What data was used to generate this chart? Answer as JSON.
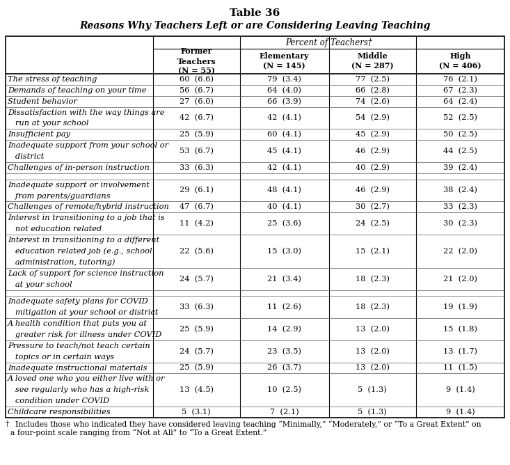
{
  "title_line1": "Table 36",
  "title_line2": "Reasons Why Teachers Left or are Considering Leaving Teaching",
  "col_header_main": "Percent of Teachers†",
  "col_headers": [
    "Former\nTeachers\n(N = 55)",
    "Elementary\n(N = 145)",
    "Middle\n(N = 287)",
    "High\n(N = 406)"
  ],
  "rows": [
    {
      "label": [
        "The stress of teaching"
      ],
      "values": [
        "60  (6.6)",
        "79  (3.4)",
        "77  (2.5)",
        "76  (2.1)"
      ]
    },
    {
      "label": [
        "Demands of teaching on your time"
      ],
      "values": [
        "56  (6.7)",
        "64  (4.0)",
        "66  (2.8)",
        "67  (2.3)"
      ]
    },
    {
      "label": [
        "Student behavior"
      ],
      "values": [
        "27  (6.0)",
        "66  (3.9)",
        "74  (2.6)",
        "64  (2.4)"
      ]
    },
    {
      "label": [
        "Dissatisfaction with the way things are",
        "   run at your school"
      ],
      "values": [
        "42  (6.7)",
        "42  (4.1)",
        "54  (2.9)",
        "52  (2.5)"
      ]
    },
    {
      "label": [
        "Insufficient pay"
      ],
      "values": [
        "25  (5.9)",
        "60  (4.1)",
        "45  (2.9)",
        "50  (2.5)"
      ]
    },
    {
      "label": [
        "Inadequate support from your school or",
        "   district"
      ],
      "values": [
        "53  (6.7)",
        "45  (4.1)",
        "46  (2.9)",
        "44  (2.5)"
      ]
    },
    {
      "label": [
        "Challenges of in-person instruction"
      ],
      "values": [
        "33  (6.3)",
        "42  (4.1)",
        "40  (2.9)",
        "39  (2.4)"
      ]
    },
    {
      "label": [
        ""
      ],
      "values": [
        "",
        "",
        "",
        ""
      ]
    },
    {
      "label": [
        "Inadequate support or involvement",
        "   from parents/guardians"
      ],
      "values": [
        "29  (6.1)",
        "48  (4.1)",
        "46  (2.9)",
        "38  (2.4)"
      ]
    },
    {
      "label": [
        "Challenges of remote/hybrid instruction"
      ],
      "values": [
        "47  (6.7)",
        "40  (4.1)",
        "30  (2.7)",
        "33  (2.3)"
      ]
    },
    {
      "label": [
        "Interest in transitioning to a job that is",
        "   not education related"
      ],
      "values": [
        "11  (4.2)",
        "25  (3.6)",
        "24  (2.5)",
        "30  (2.3)"
      ]
    },
    {
      "label": [
        "Interest in transitioning to a different",
        "   education related job (e.g., school",
        "   administration, tutoring)"
      ],
      "values": [
        "22  (5.6)",
        "15  (3.0)",
        "15  (2.1)",
        "22  (2.0)"
      ]
    },
    {
      "label": [
        "Lack of support for science instruction",
        "   at your school"
      ],
      "values": [
        "24  (5.7)",
        "21  (3.4)",
        "18  (2.3)",
        "21  (2.0)"
      ]
    },
    {
      "label": [
        ""
      ],
      "values": [
        "",
        "",
        "",
        ""
      ]
    },
    {
      "label": [
        "Inadequate safety plans for COVID",
        "   mitigation at your school or district"
      ],
      "values": [
        "33  (6.3)",
        "11  (2.6)",
        "18  (2.3)",
        "19  (1.9)"
      ]
    },
    {
      "label": [
        "A health condition that puts you at",
        "   greater risk for illness under COVID"
      ],
      "values": [
        "25  (5.9)",
        "14  (2.9)",
        "13  (2.0)",
        "15  (1.8)"
      ]
    },
    {
      "label": [
        "Pressure to teach/not teach certain",
        "   topics or in certain ways"
      ],
      "values": [
        "24  (5.7)",
        "23  (3.5)",
        "13  (2.0)",
        "13  (1.7)"
      ]
    },
    {
      "label": [
        "Inadequate instructional materials"
      ],
      "values": [
        "25  (5.9)",
        "26  (3.7)",
        "13  (2.0)",
        "11  (1.5)"
      ]
    },
    {
      "label": [
        "A loved one who you either live with or",
        "   see regularly who has a high-risk",
        "   condition under COVID"
      ],
      "values": [
        "13  (4.5)",
        "10  (2.5)",
        "5  (1.3)",
        "9  (1.4)"
      ]
    },
    {
      "label": [
        "Childcare responsibilities"
      ],
      "values": [
        "5  (3.1)",
        "7  (2.1)",
        "5  (1.3)",
        "9  (1.4)"
      ]
    }
  ],
  "footnote_sym": "†",
  "footnote_text": "  Includes those who indicated they have considered leaving teaching “Minimally,” “Moderately,” or “To a Great Extent” on\na four-point scale ranging from “Not at All” to “To a Great Extent.”"
}
